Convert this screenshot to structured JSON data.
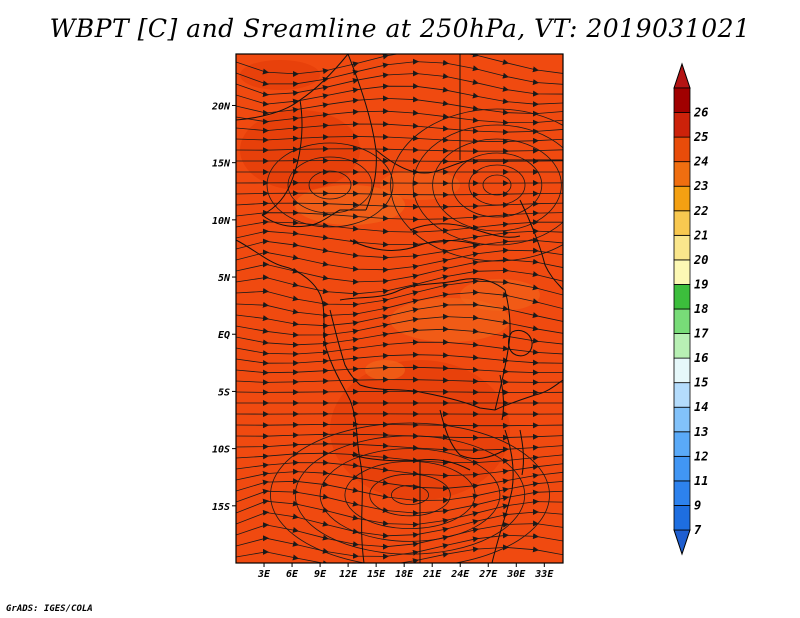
{
  "title": "WBPT [C] and Sreamline at 250hPa, VT: 2019031021",
  "credit": "GrADS: IGES/COLA",
  "map": {
    "lon_range": [
      0,
      35
    ],
    "lat_range": [
      -20,
      24.5
    ],
    "x_ticks": [
      "3E",
      "6E",
      "9E",
      "12E",
      "15E",
      "18E",
      "21E",
      "24E",
      "27E",
      "30E",
      "33E"
    ],
    "x_tick_values": [
      3,
      6,
      9,
      12,
      15,
      18,
      21,
      24,
      27,
      30,
      33
    ],
    "y_ticks": [
      "20N",
      "15N",
      "10N",
      "5N",
      "EQ",
      "5S",
      "10S",
      "15S"
    ],
    "y_tick_values": [
      20,
      15,
      10,
      5,
      0,
      -5,
      -10,
      -15
    ],
    "field_base_color": "#f04a10",
    "field_dark_color": "#e03806",
    "field_light_color": "#f26a1c",
    "streamline_color": "#1a1a1a"
  },
  "colorbar": {
    "labels": [
      "7",
      "9",
      "11",
      "12",
      "13",
      "14",
      "15",
      "16",
      "17",
      "18",
      "19",
      "20",
      "21",
      "22",
      "23",
      "24",
      "25",
      "26"
    ],
    "colors": [
      "#1e6ee0",
      "#2d82ee",
      "#4196f4",
      "#5aaaf8",
      "#82c2fa",
      "#b4dcfc",
      "#e6f8fa",
      "#b8f0b4",
      "#78dc78",
      "#3cbe3c",
      "#fcf8b4",
      "#fae68c",
      "#f8c850",
      "#f4a012",
      "#f06e10",
      "#e84c0a",
      "#cc220a",
      "#a00000"
    ],
    "under_color": "#1e5ed0",
    "over_color": "#b41414"
  }
}
